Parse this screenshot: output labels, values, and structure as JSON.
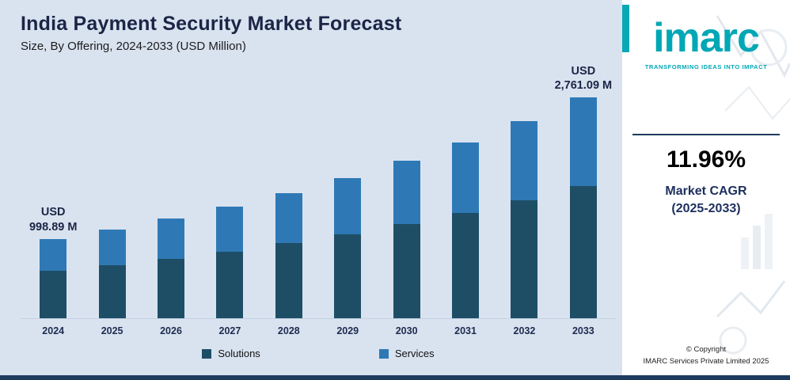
{
  "header": {
    "title": "India Payment Security Market Forecast",
    "subtitle": "Size, By Offering, 2024-2033 (USD Million)"
  },
  "chart_data": {
    "type": "bar",
    "stacked": true,
    "title": "India Payment Security Market Forecast",
    "subtitle": "Size, By Offering, 2024-2033 (USD Million)",
    "unit": "USD Million",
    "categories": [
      "2024",
      "2025",
      "2026",
      "2027",
      "2028",
      "2029",
      "2030",
      "2031",
      "2032",
      "2033"
    ],
    "series": [
      {
        "name": "Solutions",
        "color": "#1e4e66",
        "values": [
          599,
          671,
          751,
          841,
          942,
          1054,
          1181,
          1322,
          1480,
          1657
        ]
      },
      {
        "name": "Services",
        "color": "#2e79b5",
        "values": [
          400,
          447,
          501,
          561,
          628,
          703,
          787,
          881,
          986,
          1104
        ]
      }
    ],
    "labeled_totals": {
      "2024": "998.89 M",
      "2033": "2,761.09 M"
    },
    "annotations": [
      {
        "category": "2024",
        "lines": [
          "USD",
          "998.89 M"
        ]
      },
      {
        "category": "2033",
        "lines": [
          "USD",
          "2,761.09 M"
        ]
      }
    ],
    "ylim": [
      0,
      2800
    ],
    "grid": false,
    "legend_position": "bottom"
  },
  "sidebar": {
    "logo_text": "imarc",
    "tagline": "TRANSFORMING IDEAS INTO IMPACT",
    "cagr_value": "11.96%",
    "cagr_label_line1": "Market CAGR",
    "cagr_label_line2": "(2025-2033)",
    "copyright_line1": "© Copyright",
    "copyright_line2": "IMARC Services Private Limited 2025"
  },
  "colors": {
    "background": "#d9e3f0",
    "solutions": "#1e4e66",
    "services": "#2e79b5",
    "navy": "#1e3a5f",
    "teal": "#00a7b5"
  }
}
